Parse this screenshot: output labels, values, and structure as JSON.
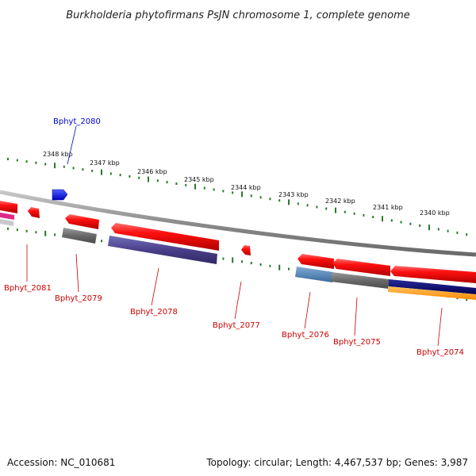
{
  "title": "Burkholderia phytofirmans PsJN chromosome 1, complete genome",
  "ruler_labels": [
    "2348 kbp",
    "2347 kbp",
    "2346 kbp",
    "2345 kbp",
    "2344 kbp",
    "2343 kbp",
    "2342 kbp",
    "2341 kbp",
    "2340 kbp"
  ],
  "genes": [
    {
      "id": "Bphyt_2080",
      "color": "#0000cc"
    },
    {
      "id": "Bphyt_2081",
      "color": "#cc0000"
    },
    {
      "id": "Bphyt_2079",
      "color": "#cc0000"
    },
    {
      "id": "Bphyt_2078",
      "color": "#cc0000"
    },
    {
      "id": "Bphyt_2077",
      "color": "#cc0000"
    },
    {
      "id": "Bphyt_2076",
      "color": "#cc0000"
    },
    {
      "id": "Bphyt_2075",
      "color": "#cc0000"
    },
    {
      "id": "Bphyt_2074",
      "color": "#cc0000"
    }
  ],
  "colors": {
    "backbone": "#888888",
    "ruler": "#2a7a2a",
    "forward_gene": "#ff1010",
    "reverse_gene": "#1030ff"
  },
  "footer": {
    "accession": "Accession: NC_010681",
    "topology": "Topology: circular; Length: 4,467,537 bp; Genes: 3,987"
  }
}
